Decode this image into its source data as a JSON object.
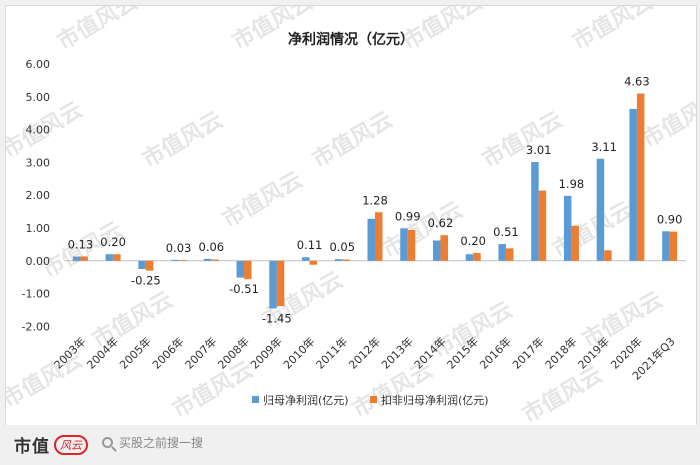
{
  "chart_data": {
    "type": "bar",
    "title": "净利润情况（亿元）",
    "categories": [
      "2003年",
      "2004年",
      "2005年",
      "2006年",
      "2007年",
      "2008年",
      "2009年",
      "2010年",
      "2011年",
      "2012年",
      "2013年",
      "2014年",
      "2015年",
      "2016年",
      "2017年",
      "2018年",
      "2019年",
      "2020年",
      "2021年Q3"
    ],
    "series": [
      {
        "name": "归母净利润(亿元)",
        "color": "#5b9bd5",
        "values": [
          0.13,
          0.2,
          -0.25,
          0.03,
          0.06,
          -0.51,
          -1.45,
          0.11,
          0.05,
          1.28,
          0.99,
          0.62,
          0.2,
          0.51,
          3.01,
          1.98,
          3.11,
          4.63,
          0.9
        ]
      },
      {
        "name": "扣非归母净利润(亿元)",
        "color": "#ed7d31",
        "values": [
          0.13,
          0.2,
          -0.3,
          0.02,
          0.04,
          -0.56,
          -1.38,
          -0.12,
          0.04,
          1.48,
          0.94,
          0.78,
          0.24,
          0.38,
          2.14,
          1.07,
          0.32,
          5.1,
          0.89
        ]
      }
    ],
    "data_labels": [
      "0.13",
      "0.20",
      "-0.25",
      "0.03",
      "0.06",
      "-0.51",
      "-1.45",
      "0.11",
      "0.05",
      "1.28",
      "0.99",
      "0.62",
      "0.20",
      "0.51",
      "3.01",
      "1.98",
      "3.11",
      "4.63",
      "0.90"
    ],
    "y_ticks": [
      "6.00",
      "5.00",
      "4.00",
      "3.00",
      "2.00",
      "1.00",
      "0.00",
      "-1.00",
      "-2.00"
    ],
    "ylim": [
      -2,
      6
    ],
    "xlabel": "",
    "ylabel": "",
    "legend_position": "bottom"
  },
  "watermark": "市值风云",
  "footer": {
    "logo_text": "市值",
    "logo_mark": "风云",
    "search_text": "买股之前搜一搜"
  }
}
